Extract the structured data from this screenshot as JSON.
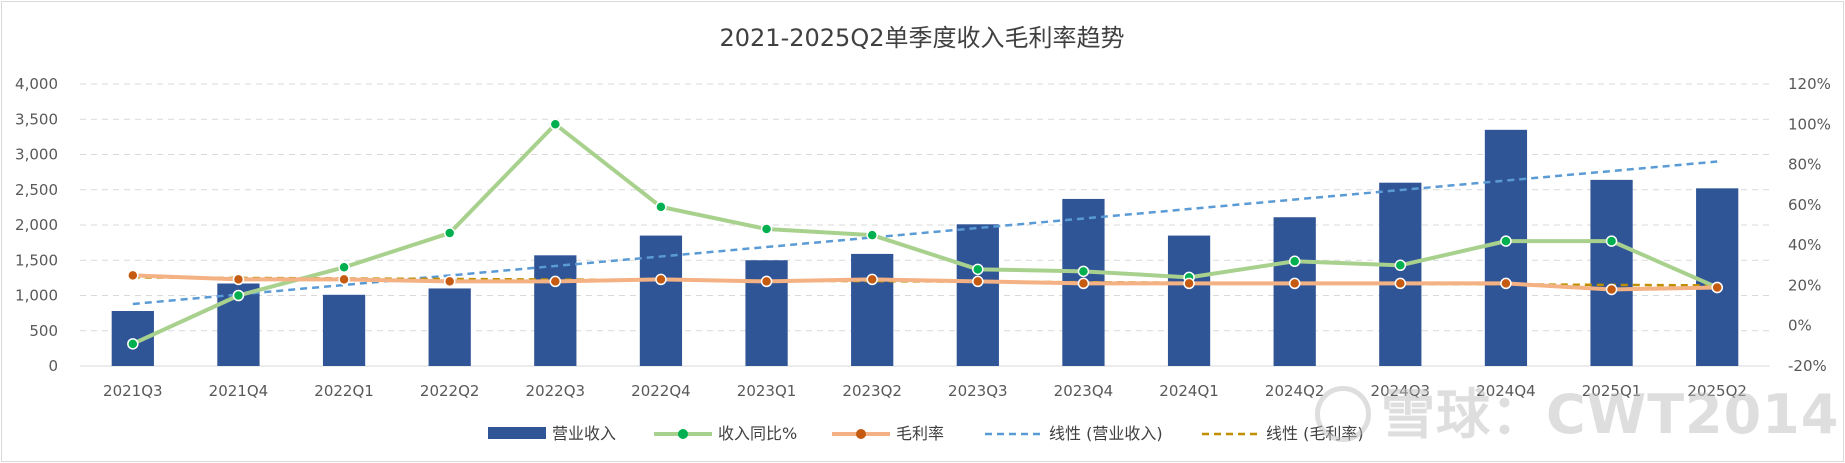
{
  "chart_data": {
    "type": "bar",
    "title": "2021-2025Q2单季度收入毛利率趋势",
    "categories": [
      "2021Q3",
      "2021Q4",
      "2022Q1",
      "2022Q2",
      "2022Q3",
      "2022Q4",
      "2023Q1",
      "2023Q2",
      "2023Q3",
      "2023Q4",
      "2024Q1",
      "2024Q2",
      "2024Q3",
      "2024Q4",
      "2025Q1",
      "2025Q2"
    ],
    "series": [
      {
        "name": "营业收入",
        "type": "bar",
        "axis": "left",
        "color": "#2f5597",
        "values": [
          780,
          1170,
          1010,
          1100,
          1570,
          1850,
          1500,
          1590,
          2010,
          2370,
          1850,
          2110,
          2600,
          3350,
          2640,
          2520
        ]
      },
      {
        "name": "收入同比%",
        "type": "line",
        "axis": "right",
        "color": "#a9d18e",
        "marker_color": "#00b050",
        "values": [
          -9,
          15,
          29,
          46,
          100,
          59,
          48,
          45,
          28,
          27,
          24,
          32,
          30,
          42,
          42,
          19
        ]
      },
      {
        "name": "毛利率",
        "type": "line",
        "axis": "right",
        "color": "#f4b183",
        "marker_color": "#c55a11",
        "values": [
          25,
          23,
          23,
          22,
          22,
          23,
          22,
          23,
          22,
          21,
          21,
          21,
          21,
          21,
          18,
          19
        ]
      }
    ],
    "trendlines": [
      {
        "name": "线性 (营业收入)",
        "color": "#5b9bd5",
        "axis": "left",
        "from": 880,
        "to": 2900
      },
      {
        "name": "线性 (毛利率)",
        "color": "#bf8f00",
        "axis": "right",
        "from": 24,
        "to": 20
      }
    ],
    "left_axis": {
      "ylim": [
        0,
        4000
      ],
      "ticks": [
        0,
        500,
        1000,
        1500,
        2000,
        2500,
        3000,
        3500,
        4000
      ],
      "tick_labels": [
        "0",
        "500",
        "1,000",
        "1,500",
        "2,000",
        "2,500",
        "3,000",
        "3,500",
        "4,000"
      ]
    },
    "right_axis": {
      "ylim": [
        -20,
        120
      ],
      "ticks": [
        -20,
        0,
        20,
        40,
        60,
        80,
        100,
        120
      ],
      "tick_labels": [
        "-20%",
        "0%",
        "20%",
        "40%",
        "60%",
        "80%",
        "100%",
        "120%"
      ]
    },
    "grid": true,
    "legend_position": "bottom"
  },
  "watermark": "雪球：CWT2014"
}
